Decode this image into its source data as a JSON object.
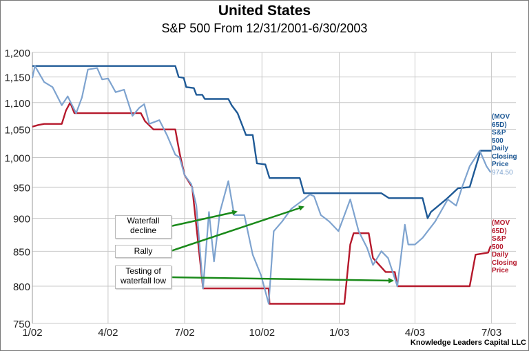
{
  "chart_data": {
    "type": "line",
    "title": "United States",
    "subtitle": "S&P 500 From 12/31/2001-6/30/2003",
    "xlabel": "",
    "ylabel": "",
    "y_scale": "log",
    "ylim": [
      750,
      1200
    ],
    "xlim": [
      "2002-01-01",
      "2003-07-30"
    ],
    "grid": true,
    "y_ticks": [
      "1,200",
      "1,150",
      "1,100",
      "1,050",
      "1,000",
      "950",
      "900",
      "850",
      "800",
      "750"
    ],
    "y_tick_values": [
      1200,
      1150,
      1100,
      1050,
      1000,
      950,
      900,
      850,
      800,
      750
    ],
    "x_ticks": [
      "1/02",
      "4/02",
      "7/02",
      "10/02",
      "1/03",
      "4/03",
      "7/03"
    ],
    "x_tick_dates": [
      "2002-01-01",
      "2002-04-01",
      "2002-07-01",
      "2002-10-01",
      "2003-01-01",
      "2003-04-01",
      "2003-07-01"
    ],
    "series": [
      {
        "key": "price",
        "color": "#7ea3cf",
        "last_value_label": "974.50",
        "points": [
          [
            "2002-01-01",
            1148
          ],
          [
            "2002-01-04",
            1172
          ],
          [
            "2002-01-15",
            1140
          ],
          [
            "2002-01-25",
            1130
          ],
          [
            "2002-02-05",
            1095
          ],
          [
            "2002-02-12",
            1112
          ],
          [
            "2002-02-22",
            1080
          ],
          [
            "2002-03-01",
            1110
          ],
          [
            "2002-03-08",
            1165
          ],
          [
            "2002-03-19",
            1168
          ],
          [
            "2002-03-25",
            1145
          ],
          [
            "2002-04-01",
            1147
          ],
          [
            "2002-04-10",
            1120
          ],
          [
            "2002-04-20",
            1125
          ],
          [
            "2002-04-30",
            1075
          ],
          [
            "2002-05-08",
            1090
          ],
          [
            "2002-05-14",
            1097
          ],
          [
            "2002-05-20",
            1060
          ],
          [
            "2002-06-01",
            1067
          ],
          [
            "2002-06-10",
            1040
          ],
          [
            "2002-06-20",
            1005
          ],
          [
            "2002-06-25",
            1000
          ],
          [
            "2002-07-01",
            970
          ],
          [
            "2002-07-09",
            955
          ],
          [
            "2002-07-15",
            920
          ],
          [
            "2002-07-23",
            797
          ],
          [
            "2002-07-30",
            910
          ],
          [
            "2002-08-05",
            835
          ],
          [
            "2002-08-12",
            910
          ],
          [
            "2002-08-22",
            960
          ],
          [
            "2002-08-29",
            905
          ],
          [
            "2002-09-10",
            905
          ],
          [
            "2002-09-20",
            845
          ],
          [
            "2002-09-30",
            815
          ],
          [
            "2002-10-09",
            776
          ],
          [
            "2002-10-15",
            880
          ],
          [
            "2002-10-25",
            895
          ],
          [
            "2002-11-05",
            915
          ],
          [
            "2002-11-20",
            930
          ],
          [
            "2002-11-27",
            938
          ],
          [
            "2002-12-02",
            935
          ],
          [
            "2002-12-10",
            905
          ],
          [
            "2002-12-20",
            895
          ],
          [
            "2002-12-31",
            880
          ],
          [
            "2003-01-14",
            930
          ],
          [
            "2003-01-24",
            880
          ],
          [
            "2003-02-03",
            855
          ],
          [
            "2003-02-10",
            830
          ],
          [
            "2003-02-20",
            850
          ],
          [
            "2003-02-28",
            840
          ],
          [
            "2003-03-11",
            800
          ],
          [
            "2003-03-20",
            890
          ],
          [
            "2003-03-24",
            860
          ],
          [
            "2003-04-01",
            860
          ],
          [
            "2003-04-10",
            870
          ],
          [
            "2003-04-25",
            895
          ],
          [
            "2003-05-10",
            930
          ],
          [
            "2003-05-20",
            920
          ],
          [
            "2003-05-27",
            950
          ],
          [
            "2003-06-05",
            985
          ],
          [
            "2003-06-17",
            1012
          ],
          [
            "2003-06-25",
            985
          ],
          [
            "2003-06-30",
            974.5
          ]
        ]
      },
      {
        "key": "mov_high",
        "name": "(MOV 65D) S&P 500 Daily Closing Price",
        "color": "#1f5a96",
        "points": [
          [
            "2002-01-01",
            1172
          ],
          [
            "2002-06-20",
            1172
          ],
          [
            "2002-06-24",
            1150
          ],
          [
            "2002-06-30",
            1148
          ],
          [
            "2002-07-03",
            1130
          ],
          [
            "2002-07-12",
            1128
          ],
          [
            "2002-07-15",
            1115
          ],
          [
            "2002-07-22",
            1115
          ],
          [
            "2002-07-25",
            1107
          ],
          [
            "2002-08-22",
            1107
          ],
          [
            "2002-08-26",
            1095
          ],
          [
            "2002-09-02",
            1080
          ],
          [
            "2002-09-12",
            1040
          ],
          [
            "2002-09-20",
            1040
          ],
          [
            "2002-09-25",
            990
          ],
          [
            "2002-10-05",
            988
          ],
          [
            "2002-10-10",
            965
          ],
          [
            "2002-11-15",
            965
          ],
          [
            "2002-11-20",
            940
          ],
          [
            "2003-02-20",
            940
          ],
          [
            "2003-03-01",
            932
          ],
          [
            "2003-04-10",
            932
          ],
          [
            "2003-04-16",
            900
          ],
          [
            "2003-04-20",
            910
          ],
          [
            "2003-05-08",
            930
          ],
          [
            "2003-05-22",
            948
          ],
          [
            "2003-06-05",
            950
          ],
          [
            "2003-06-18",
            1012
          ],
          [
            "2003-07-01",
            1012
          ]
        ]
      },
      {
        "key": "mov_low",
        "name": "(MOV 65D) S&P 500 Daily Closing Price",
        "color": "#b5182b",
        "points": [
          [
            "2002-01-01",
            1055
          ],
          [
            "2002-01-08",
            1058
          ],
          [
            "2002-01-15",
            1060
          ],
          [
            "2002-02-05",
            1060
          ],
          [
            "2002-02-10",
            1085
          ],
          [
            "2002-02-15",
            1100
          ],
          [
            "2002-02-20",
            1080
          ],
          [
            "2002-05-10",
            1080
          ],
          [
            "2002-05-15",
            1065
          ],
          [
            "2002-05-25",
            1050
          ],
          [
            "2002-06-20",
            1050
          ],
          [
            "2002-06-25",
            1008
          ],
          [
            "2002-07-01",
            970
          ],
          [
            "2002-07-10",
            950
          ],
          [
            "2002-07-23",
            797
          ],
          [
            "2002-10-09",
            797
          ],
          [
            "2002-10-10",
            776
          ],
          [
            "2003-01-07",
            776
          ],
          [
            "2003-01-14",
            860
          ],
          [
            "2003-01-18",
            877
          ],
          [
            "2003-02-05",
            877
          ],
          [
            "2003-02-10",
            840
          ],
          [
            "2003-02-25",
            820
          ],
          [
            "2003-03-08",
            820
          ],
          [
            "2003-03-11",
            800
          ],
          [
            "2003-06-05",
            800
          ],
          [
            "2003-06-12",
            845
          ],
          [
            "2003-06-27",
            848
          ],
          [
            "2003-06-30",
            858
          ]
        ]
      }
    ],
    "annotations": [
      "Waterfall decline",
      "Rally",
      "Testing of waterfall low"
    ],
    "legend_placement": "right"
  },
  "labels": {
    "high_label": "(MOV 65D) S&P 500 Daily Closing Price",
    "price_label": "974.50",
    "low_label": "(MOV 65D) S&P 500 Daily Closing Price"
  },
  "credit": "Knowledge Leaders Capital LLC",
  "colors": {
    "arrow": "#1a8a1a",
    "grid": "#c8c8c8"
  }
}
